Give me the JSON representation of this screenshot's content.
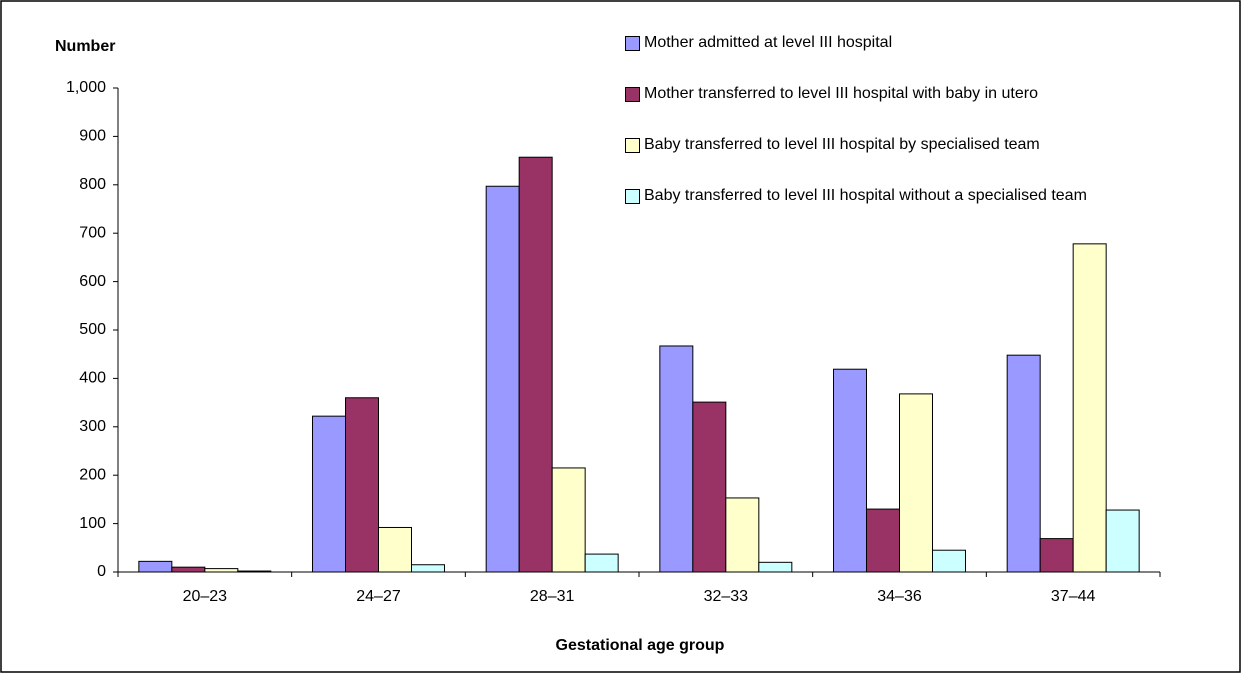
{
  "chart_data": {
    "type": "bar",
    "y_label": "Number",
    "x_label": "Gestational age group",
    "categories": [
      "20–23",
      "24–27",
      "28–31",
      "32–33",
      "34–36",
      "37–44"
    ],
    "series": [
      {
        "name": "Mother admitted at level III hospital",
        "color": "#9999ff",
        "values": [
          22,
          322,
          797,
          467,
          419,
          448
        ]
      },
      {
        "name": "Mother transferred to level III hospital with baby in utero",
        "color": "#993366",
        "values": [
          10,
          360,
          857,
          351,
          130,
          69
        ]
      },
      {
        "name": "Baby transferred to level III hospital by specialised team",
        "color": "#ffffcc",
        "values": [
          7,
          92,
          215,
          153,
          368,
          678
        ]
      },
      {
        "name": "Baby transferred to level III hospital without a specialised team",
        "color": "#ccffff",
        "values": [
          2,
          15,
          37,
          20,
          45,
          128
        ]
      }
    ],
    "ylim": [
      0,
      1000
    ],
    "yticks": [
      0,
      100,
      200,
      300,
      400,
      500,
      600,
      700,
      800,
      900,
      {
        "value": 1000,
        "label": "1,000"
      }
    ],
    "grid": false,
    "legend": "top-right"
  }
}
